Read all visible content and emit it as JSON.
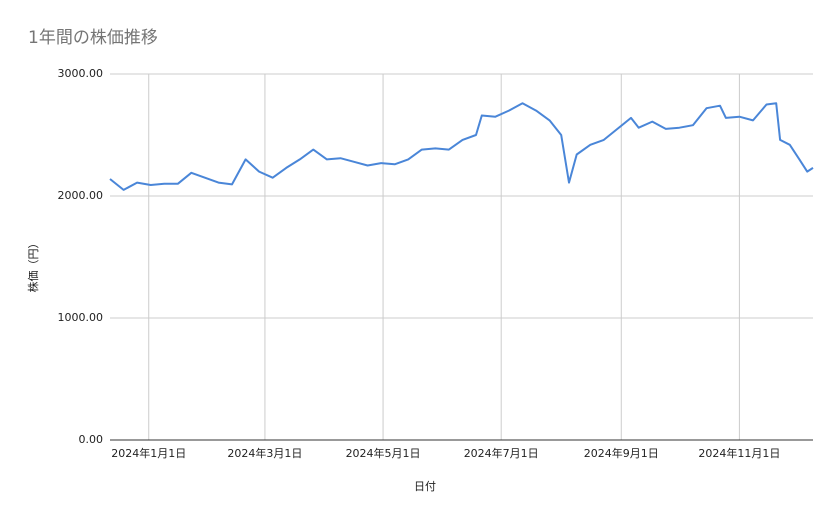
{
  "chart_data": {
    "type": "line",
    "title": "1年間の株価推移",
    "x_label": "日付",
    "y_label": "株価（円）",
    "x": [
      "2023-12-12",
      "2023-12-19",
      "2023-12-26",
      "2024-01-02",
      "2024-01-09",
      "2024-01-16",
      "2024-01-23",
      "2024-01-30",
      "2024-02-06",
      "2024-02-13",
      "2024-02-20",
      "2024-02-27",
      "2024-03-05",
      "2024-03-12",
      "2024-03-19",
      "2024-03-26",
      "2024-04-02",
      "2024-04-09",
      "2024-04-16",
      "2024-04-23",
      "2024-04-30",
      "2024-05-07",
      "2024-05-14",
      "2024-05-21",
      "2024-05-28",
      "2024-06-04",
      "2024-06-11",
      "2024-06-18",
      "2024-06-21",
      "2024-06-28",
      "2024-07-05",
      "2024-07-12",
      "2024-07-19",
      "2024-07-26",
      "2024-08-01",
      "2024-08-05",
      "2024-08-09",
      "2024-08-16",
      "2024-08-23",
      "2024-08-30",
      "2024-09-06",
      "2024-09-10",
      "2024-09-17",
      "2024-09-24",
      "2024-10-01",
      "2024-10-08",
      "2024-10-15",
      "2024-10-22",
      "2024-10-25",
      "2024-11-01",
      "2024-11-08",
      "2024-11-15",
      "2024-11-20",
      "2024-11-22",
      "2024-11-27",
      "2024-12-02",
      "2024-12-06",
      "2024-12-09"
    ],
    "series": [
      {
        "name": "株価",
        "color": "#4a86d8",
        "values": [
          2139,
          2050,
          2110,
          2090,
          2100,
          2100,
          2190,
          2150,
          2110,
          2095,
          2300,
          2200,
          2150,
          2230,
          2300,
          2380,
          2300,
          2310,
          2280,
          2250,
          2270,
          2260,
          2300,
          2380,
          2390,
          2380,
          2460,
          2500,
          2660,
          2650,
          2700,
          2760,
          2700,
          2620,
          2500,
          2110,
          2340,
          2420,
          2460,
          2550,
          2640,
          2560,
          2610,
          2550,
          2560,
          2580,
          2720,
          2740,
          2640,
          2650,
          2620,
          2750,
          2760,
          2460,
          2420,
          2300,
          2200,
          2230
        ]
      }
    ],
    "xlim": [
      "2023-12-12",
      "2024-12-09"
    ],
    "xticks": [
      {
        "value": "2024-01-01",
        "label": "2024年1月1日"
      },
      {
        "value": "2024-03-01",
        "label": "2024年3月1日"
      },
      {
        "value": "2024-05-01",
        "label": "2024年5月1日"
      },
      {
        "value": "2024-07-01",
        "label": "2024年7月1日"
      },
      {
        "value": "2024-09-01",
        "label": "2024年9月1日"
      },
      {
        "value": "2024-11-01",
        "label": "2024年11月1日"
      }
    ],
    "ylim": [
      0,
      3000
    ],
    "yticks": [
      {
        "value": 0,
        "label": "0.00"
      },
      {
        "value": 1000,
        "label": "1000.00"
      },
      {
        "value": 2000,
        "label": "2000.00"
      },
      {
        "value": 3000,
        "label": "3000.00"
      }
    ],
    "grid": true
  }
}
